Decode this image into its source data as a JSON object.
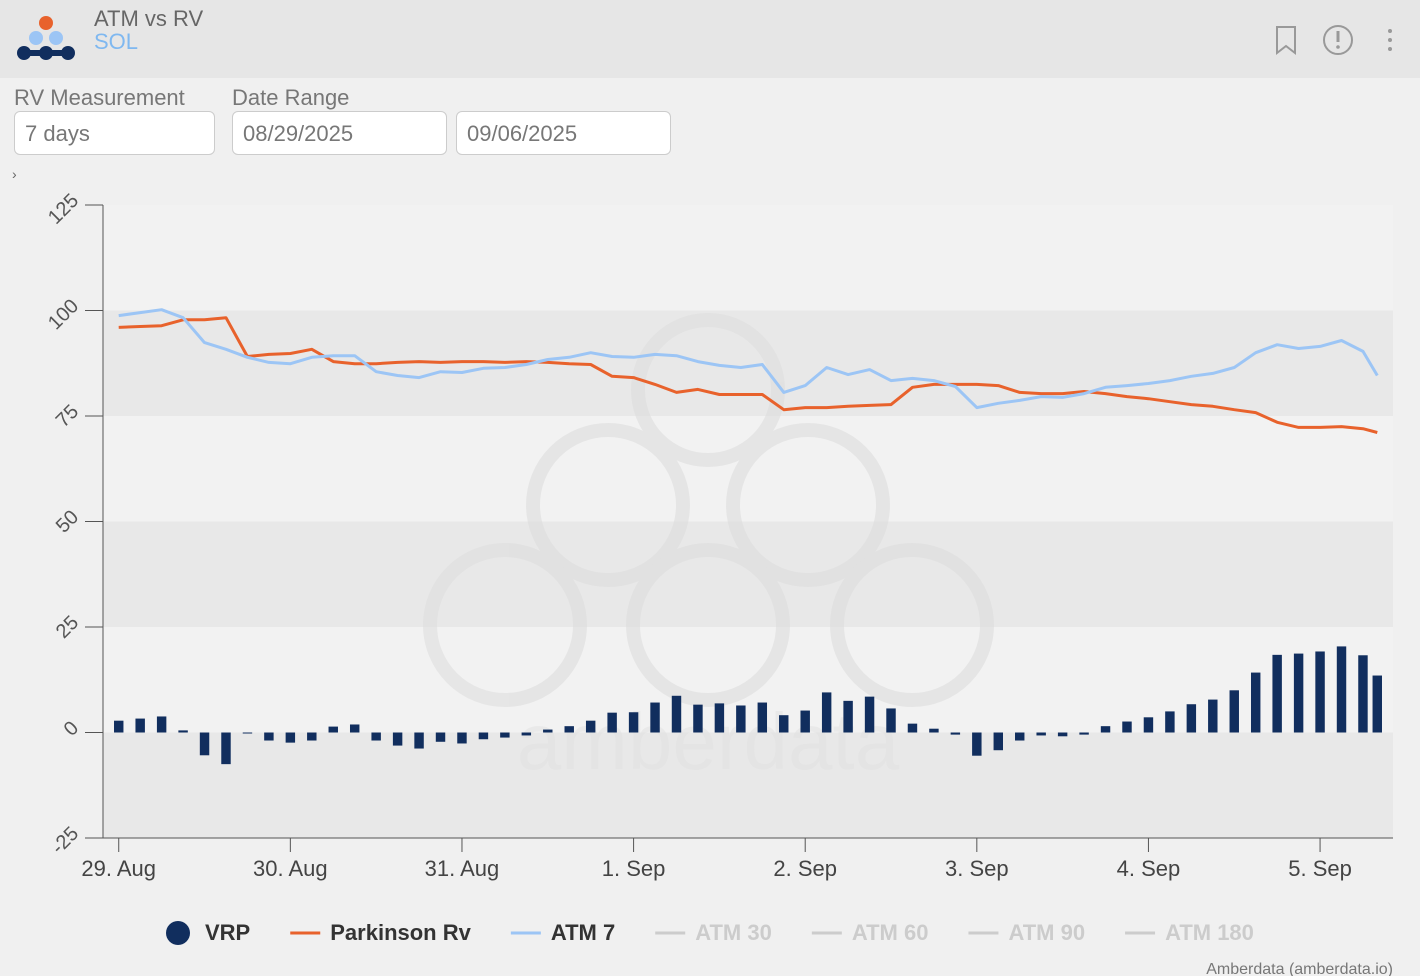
{
  "header": {
    "title": "ATM vs RV",
    "subtitle": "SOL"
  },
  "controls": {
    "rv_label": "RV Measurement",
    "rv_value": "7 days",
    "date_label": "Date Range",
    "date_from": "08/29/2025",
    "date_to": "09/06/2025"
  },
  "chart_data": {
    "type": "bar-line",
    "x": [
      0,
      3,
      6,
      9,
      12,
      15,
      18,
      21,
      24,
      27,
      30,
      33,
      36,
      39,
      42,
      45,
      48,
      51,
      54,
      57,
      60,
      63,
      66,
      69,
      72,
      75,
      78,
      81,
      84,
      87,
      90,
      93,
      96,
      99,
      102,
      105,
      108,
      111,
      114,
      117,
      120,
      123,
      126,
      129,
      132,
      135,
      138,
      141,
      144,
      147,
      150,
      153,
      156,
      159,
      162,
      165,
      168,
      171,
      174,
      176
    ],
    "xlim": [
      -2.2,
      178.2
    ],
    "xticks": [
      {
        "value": 0,
        "label": "29. Aug"
      },
      {
        "value": 24,
        "label": "30. Aug"
      },
      {
        "value": 48,
        "label": "31. Aug"
      },
      {
        "value": 72,
        "label": "1. Sep"
      },
      {
        "value": 96,
        "label": "2. Sep"
      },
      {
        "value": 120,
        "label": "3. Sep"
      },
      {
        "value": 144,
        "label": "4. Sep"
      },
      {
        "value": 168,
        "label": "5. Sep"
      }
    ],
    "ylim": [
      -25,
      125
    ],
    "yticks": [
      -25,
      0,
      25,
      50,
      75,
      100,
      125
    ],
    "grid": "bands",
    "legend": "bottom",
    "watermark": "amberdata",
    "credits": "Amberdata (amberdata.io)",
    "series": [
      {
        "name": "VRP",
        "type": "bar",
        "color": "#112e5e",
        "values": [
          2.8,
          3.3,
          3.8,
          0.5,
          -5.4,
          -7.5,
          -0.2,
          -1.9,
          -2.4,
          -1.9,
          1.4,
          1.9,
          -1.9,
          -3.1,
          -3.8,
          -2.2,
          -2.6,
          -1.6,
          -1.2,
          -0.7,
          0.7,
          1.5,
          2.8,
          4.7,
          4.8,
          7.1,
          8.7,
          6.6,
          6.9,
          6.4,
          7.1,
          4.1,
          5.2,
          9.5,
          7.5,
          8.5,
          5.7,
          2.1,
          0.9,
          -0.5,
          -5.5,
          -4.2,
          -1.9,
          -0.7,
          -0.9,
          -0.5,
          1.5,
          2.6,
          3.6,
          5.0,
          6.7,
          7.8,
          10,
          14.2,
          18.4,
          18.7,
          19.2,
          20.4,
          18.3,
          13.5
        ]
      },
      {
        "name": "Parkinson Rv",
        "type": "line",
        "color": "#e8622c",
        "values": [
          96,
          96.2,
          96.4,
          97.8,
          97.8,
          98.3,
          89.1,
          89.6,
          89.8,
          90.8,
          87.9,
          87.4,
          87.4,
          87.7,
          87.9,
          87.7,
          87.9,
          87.9,
          87.7,
          87.9,
          87.7,
          87.4,
          87.2,
          84.4,
          84.1,
          82.5,
          80.6,
          81.3,
          80.1,
          80.1,
          80.1,
          76.5,
          77,
          77,
          77.3,
          77.5,
          77.7,
          81.8,
          82.5,
          82.5,
          82.5,
          82.2,
          80.6,
          80.3,
          80.3,
          80.8,
          80.3,
          79.6,
          79.1,
          78.4,
          77.7,
          77.3,
          76.5,
          75.8,
          73.5,
          72.3,
          72.3,
          72.5,
          72,
          71.1
        ]
      },
      {
        "name": "ATM 7",
        "type": "line",
        "color": "#9cc5f5",
        "values": [
          98.8,
          99.5,
          100.2,
          98.3,
          92.4,
          90.8,
          88.9,
          87.7,
          87.4,
          88.9,
          89.3,
          89.3,
          85.5,
          84.6,
          84.1,
          85.5,
          85.3,
          86.3,
          86.5,
          87.2,
          88.4,
          88.9,
          90,
          89.1,
          88.9,
          89.6,
          89.3,
          87.9,
          87,
          86.5,
          87.2,
          80.6,
          82.2,
          86.5,
          84.8,
          86,
          83.4,
          83.9,
          83.4,
          82,
          77,
          78,
          78.7,
          79.6,
          79.4,
          80.3,
          81.8,
          82.2,
          82.7,
          83.4,
          84.4,
          85.1,
          86.5,
          90,
          91.9,
          91,
          91.5,
          92.9,
          90.3,
          84.6
        ]
      },
      {
        "name": "ATM 30",
        "type": "line",
        "visible": false,
        "color": "#cccccc"
      },
      {
        "name": "ATM 60",
        "type": "line",
        "visible": false,
        "color": "#cccccc"
      },
      {
        "name": "ATM 90",
        "type": "line",
        "visible": false,
        "color": "#cccccc"
      },
      {
        "name": "ATM 180",
        "type": "line",
        "visible": false,
        "color": "#cccccc"
      }
    ]
  }
}
